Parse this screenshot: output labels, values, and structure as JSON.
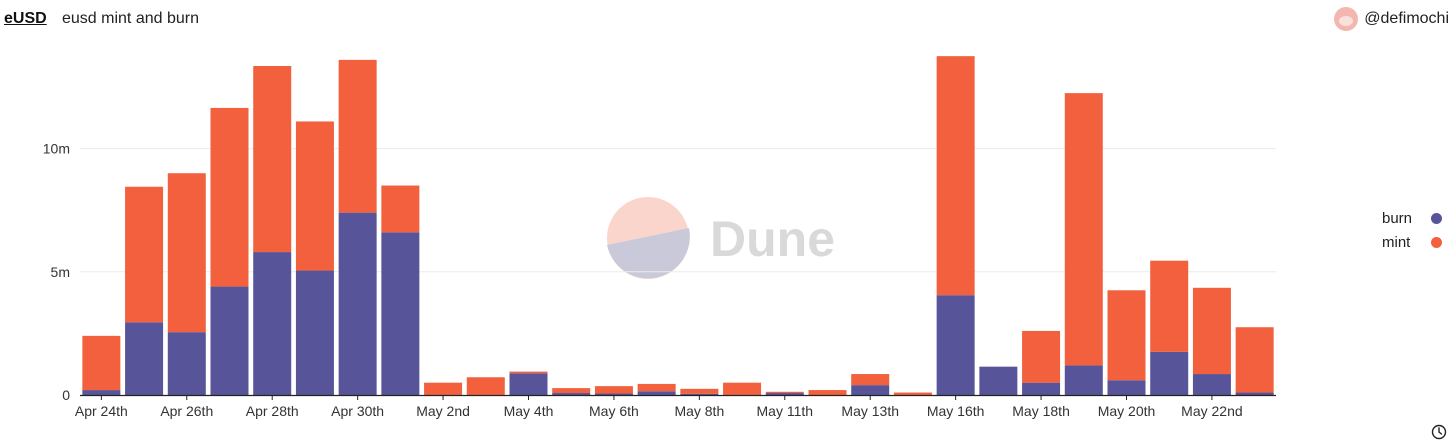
{
  "header": {
    "title_link": "eUSD",
    "title": "eusd mint and burn",
    "user": "@defimochi"
  },
  "icons": {
    "avatar": "user-avatar",
    "clock": "clock-icon",
    "watermark": "dune-logo"
  },
  "watermark": {
    "text": "Dune"
  },
  "colors": {
    "burn": "#575499",
    "mint": "#f2603e",
    "grid": "#ececec",
    "axis": "#222222"
  },
  "chart_data": {
    "type": "bar",
    "stacked": true,
    "categories": [
      "Apr 24th",
      "Apr 25th",
      "Apr 26th",
      "Apr 27th",
      "Apr 28th",
      "Apr 29th",
      "Apr 30th",
      "May 1st",
      "May 2nd",
      "May 3rd",
      "May 4th",
      "May 5th",
      "May 6th",
      "May 7th",
      "May 8th",
      "May 9th",
      "May 11th",
      "May 12th",
      "May 13th",
      "May 15th",
      "May 16th",
      "May 17th",
      "May 18th",
      "May 19th",
      "May 20th",
      "May 21st",
      "May 22nd",
      "May 23rd"
    ],
    "tick_labels": [
      "Apr 24th",
      "Apr 26th",
      "Apr 28th",
      "Apr 30th",
      "May 2nd",
      "May 4th",
      "May 6th",
      "May 8th",
      "May 11th",
      "May 13th",
      "May 16th",
      "May 18th",
      "May 20th",
      "May 22nd"
    ],
    "series": [
      {
        "name": "burn",
        "color": "#575499",
        "values": [
          0.2,
          2.95,
          2.55,
          4.4,
          5.8,
          5.05,
          7.4,
          6.6,
          0,
          0,
          0.88,
          0.08,
          0.06,
          0.15,
          0.05,
          0,
          0.08,
          0,
          0.4,
          0,
          4.05,
          1.15,
          0.5,
          1.2,
          0.6,
          1.75,
          0.85,
          0.1
        ]
      },
      {
        "name": "mint",
        "color": "#f2603e",
        "values": [
          2.2,
          5.5,
          6.45,
          7.25,
          7.55,
          6.05,
          6.2,
          1.9,
          0.5,
          0.72,
          0.07,
          0.2,
          0.3,
          0.3,
          0.2,
          0.5,
          0.05,
          0.2,
          0.45,
          0.1,
          9.7,
          0,
          2.1,
          11.05,
          3.65,
          3.7,
          3.5,
          2.65
        ]
      }
    ],
    "y_ticks": [
      "0",
      "5m",
      "10m"
    ],
    "ylim": [
      0,
      14
    ],
    "legend": {
      "position": "right",
      "items": [
        "burn",
        "mint"
      ]
    },
    "grid": true
  }
}
